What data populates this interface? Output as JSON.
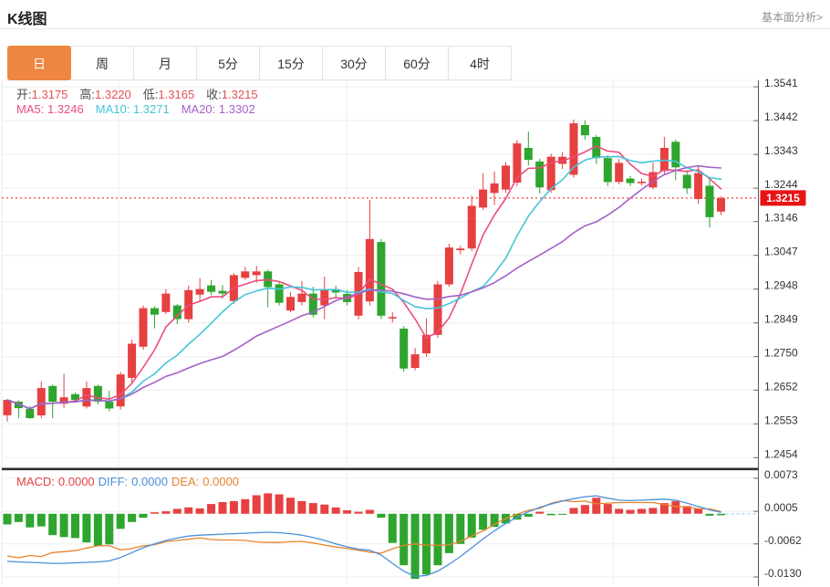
{
  "header": {
    "title": "K线图",
    "analysis_link": "基本面分析>"
  },
  "tabs": {
    "items": [
      "日",
      "周",
      "月",
      "5分",
      "15分",
      "30分",
      "60分",
      "4时"
    ],
    "selected_index": 0
  },
  "price_overlay": {
    "open_label": "开:",
    "open_value": "1.3175",
    "high_label": "高:",
    "high_value": "1.3220",
    "low_label": "低:",
    "low_value": "1.3165",
    "close_label": "收:",
    "close_value": "1.3215"
  },
  "ma_overlay": {
    "ma5_label": "MA5:",
    "ma5_value": "1.3246",
    "ma10_label": "MA10:",
    "ma10_value": "1.3271",
    "ma20_label": "MA20:",
    "ma20_value": "1.3302"
  },
  "macd_overlay": {
    "macd_label": "MACD:",
    "macd_value": "0.0000",
    "diff_label": "DIFF:",
    "diff_value": "0.0000",
    "dea_label": "DEA:",
    "dea_value": "0.0000"
  },
  "colors": {
    "up": "#e64040",
    "down": "#2ea52e",
    "ma5": "#ec4d7d",
    "ma10": "#45c5d8",
    "ma20": "#a361c9",
    "diff": "#4a90d9",
    "dea": "#e8842e",
    "tab_accent": "#ee8540",
    "grid": "#ededed",
    "axis_line": "#555555",
    "axis_text": "#333333",
    "price_line": "#ff5050",
    "price_box": "#e81414",
    "zero_dash": "#8fd4e8",
    "separator": "#2e2e2e",
    "ohlc_value": "#e05252"
  },
  "chart_data": {
    "type": "candlestick",
    "title": "K线图",
    "panels": [
      "price",
      "macd"
    ],
    "legend_note": "red = up candle, green = down candle (CN convention)",
    "price_axis": {
      "ticks": [
        "1.3541",
        "1.3442",
        "1.3343",
        "1.3244",
        "1.3146",
        "1.3047",
        "1.2948",
        "1.2849",
        "1.2750",
        "1.2652",
        "1.2553",
        "1.2454"
      ],
      "current_price": "1.3215",
      "range_top": 1.356,
      "range_bottom": 1.242
    },
    "macd_axis": {
      "ticks": [
        "0.0073",
        "0.0005",
        "-0.0062",
        "-0.0130"
      ],
      "range_top": 0.0086,
      "range_bottom": -0.0147
    },
    "ma_periods": [
      5,
      10,
      20
    ],
    "grid_vertical_x": [
      130,
      380,
      672
    ],
    "candles": [
      [
        1.2578,
        1.2625,
        1.256,
        1.2623
      ],
      [
        1.2618,
        1.2622,
        1.257,
        1.2599
      ],
      [
        1.2597,
        1.2605,
        1.2568,
        1.257
      ],
      [
        1.2578,
        1.2677,
        1.257,
        1.2658
      ],
      [
        1.2664,
        1.2668,
        1.257,
        1.2618
      ],
      [
        1.2612,
        1.27,
        1.26,
        1.2631
      ],
      [
        1.264,
        1.2645,
        1.2615,
        1.2623
      ],
      [
        1.2604,
        1.2677,
        1.2598,
        1.2658
      ],
      [
        1.2664,
        1.2668,
        1.261,
        1.2618
      ],
      [
        1.2618,
        1.265,
        1.259,
        1.2598
      ],
      [
        1.2604,
        1.2705,
        1.2595,
        1.2698
      ],
      [
        1.2688,
        1.28,
        1.267,
        1.2788
      ],
      [
        1.2779,
        1.29,
        1.277,
        1.2892
      ],
      [
        1.2892,
        1.2898,
        1.2833,
        1.2873
      ],
      [
        1.2881,
        1.2948,
        1.2875,
        1.2935
      ],
      [
        1.29,
        1.2905,
        1.2845,
        1.286
      ],
      [
        1.286,
        1.2958,
        1.285,
        1.2945
      ],
      [
        1.2932,
        1.298,
        1.2913,
        1.2948
      ],
      [
        1.2959,
        1.2975,
        1.293,
        1.294
      ],
      [
        1.2943,
        1.296,
        1.292,
        1.2935
      ],
      [
        1.2913,
        1.2995,
        1.2905,
        1.2989
      ],
      [
        1.2981,
        1.3013,
        1.2975,
        1.3
      ],
      [
        1.2989,
        1.3016,
        1.2967,
        1.3
      ],
      [
        1.3,
        1.3005,
        1.2895,
        1.2954
      ],
      [
        1.2962,
        1.2968,
        1.29,
        1.2908
      ],
      [
        1.2885,
        1.294,
        1.288,
        1.2925
      ],
      [
        1.291,
        1.2972,
        1.29,
        1.2935
      ],
      [
        1.2935,
        1.2955,
        1.2865,
        1.2873
      ],
      [
        1.29,
        1.2985,
        1.286,
        1.2945
      ],
      [
        1.2948,
        1.2958,
        1.292,
        1.2938
      ],
      [
        1.2934,
        1.2945,
        1.29,
        1.291
      ],
      [
        1.287,
        1.3013,
        1.286,
        1.2998
      ],
      [
        1.2912,
        1.321,
        1.29,
        1.3095
      ],
      [
        1.3086,
        1.3095,
        1.286,
        1.287
      ],
      [
        1.2864,
        1.288,
        1.285,
        1.2866
      ],
      [
        1.2832,
        1.284,
        1.2706,
        1.2715
      ],
      [
        1.2717,
        1.2775,
        1.271,
        1.2757
      ],
      [
        1.276,
        1.2862,
        1.275,
        1.2814
      ],
      [
        1.2814,
        1.2972,
        1.2805,
        1.2962
      ],
      [
        1.2962,
        1.3081,
        1.2955,
        1.307
      ],
      [
        1.3062,
        1.3075,
        1.305,
        1.3067
      ],
      [
        1.3067,
        1.3222,
        1.306,
        1.3192
      ],
      [
        1.3187,
        1.3288,
        1.318,
        1.324
      ],
      [
        1.323,
        1.3293,
        1.3194,
        1.3258
      ],
      [
        1.324,
        1.332,
        1.323,
        1.331
      ],
      [
        1.326,
        1.3385,
        1.325,
        1.3375
      ],
      [
        1.3362,
        1.341,
        1.331,
        1.3327
      ],
      [
        1.3322,
        1.333,
        1.3228,
        1.3246
      ],
      [
        1.3238,
        1.3345,
        1.323,
        1.3336
      ],
      [
        1.3315,
        1.335,
        1.33,
        1.3336
      ],
      [
        1.3283,
        1.3445,
        1.3275,
        1.3434
      ],
      [
        1.3429,
        1.3443,
        1.3386,
        1.3399
      ],
      [
        1.3394,
        1.34,
        1.3315,
        1.3332
      ],
      [
        1.3332,
        1.334,
        1.325,
        1.3262
      ],
      [
        1.3262,
        1.333,
        1.3255,
        1.3318
      ],
      [
        1.3272,
        1.328,
        1.325,
        1.3259
      ],
      [
        1.3262,
        1.3272,
        1.3252,
        1.3263
      ],
      [
        1.3246,
        1.3319,
        1.324,
        1.3291
      ],
      [
        1.3294,
        1.3394,
        1.3285,
        1.3362
      ],
      [
        1.338,
        1.3386,
        1.3267,
        1.3305
      ],
      [
        1.3283,
        1.3297,
        1.3227,
        1.3243
      ],
      [
        1.3212,
        1.331,
        1.3198,
        1.3288
      ],
      [
        1.3251,
        1.3275,
        1.3129,
        1.3159
      ],
      [
        1.3175,
        1.322,
        1.3165,
        1.3215
      ]
    ],
    "macd_hist": [
      -0.0022,
      -0.0017,
      -0.0028,
      -0.0026,
      -0.0044,
      -0.0048,
      -0.005,
      -0.0059,
      -0.0066,
      -0.0063,
      -0.0031,
      -0.0017,
      -0.0008,
      0.0003,
      0.0005,
      0.001,
      0.0013,
      0.0011,
      0.002,
      0.0024,
      0.0026,
      0.003,
      0.0038,
      0.0042,
      0.004,
      0.0033,
      0.0026,
      0.0022,
      0.0019,
      0.0013,
      0.0007,
      0.0004,
      0.0008,
      -0.0008,
      -0.006,
      -0.0106,
      -0.0134,
      -0.0125,
      -0.0106,
      -0.0081,
      -0.0062,
      -0.0049,
      -0.0033,
      -0.0027,
      -0.002,
      -0.0012,
      -0.0006,
      0.0004,
      -0.0003,
      -0.0002,
      0.0012,
      0.0018,
      0.0033,
      0.002,
      0.001,
      0.0008,
      0.001,
      0.0012,
      0.0022,
      0.0026,
      0.0016,
      0.001,
      -0.0004,
      -0.0003
    ],
    "macd_diff": [
      -0.0098,
      -0.0099,
      -0.01,
      -0.0101,
      -0.0102,
      -0.0102,
      -0.0101,
      -0.01,
      -0.0099,
      -0.0097,
      -0.009,
      -0.008,
      -0.007,
      -0.0062,
      -0.0055,
      -0.005,
      -0.0046,
      -0.0044,
      -0.0043,
      -0.0042,
      -0.0041,
      -0.004,
      -0.0039,
      -0.0038,
      -0.0039,
      -0.0041,
      -0.0044,
      -0.0049,
      -0.0055,
      -0.0062,
      -0.0068,
      -0.0073,
      -0.0075,
      -0.0085,
      -0.0102,
      -0.0118,
      -0.0129,
      -0.0127,
      -0.0118,
      -0.0104,
      -0.0088,
      -0.007,
      -0.0052,
      -0.0035,
      -0.002,
      -0.0007,
      0.0004,
      0.0013,
      0.002,
      0.0026,
      0.0031,
      0.0035,
      0.0037,
      0.0032,
      0.0028,
      0.0027,
      0.0028,
      0.0029,
      0.003,
      0.0028,
      0.0022,
      0.0015,
      0.0008,
      0.0003
    ]
  }
}
